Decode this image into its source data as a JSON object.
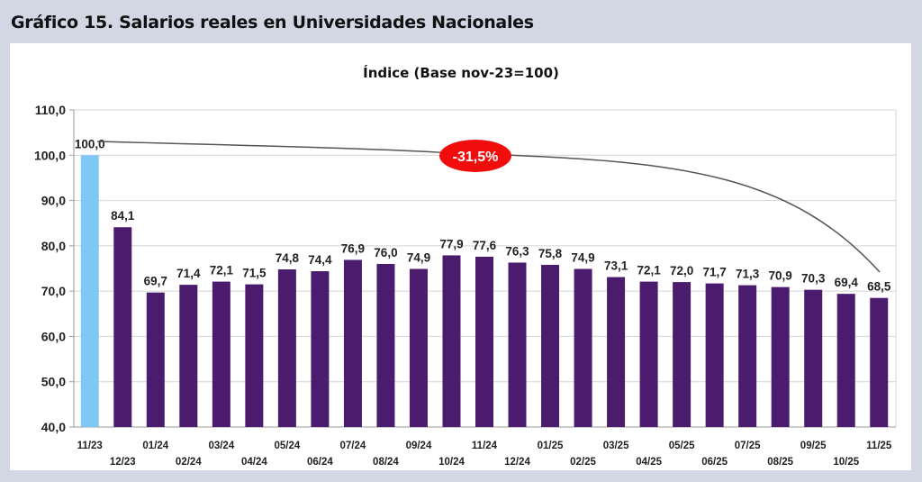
{
  "header": {
    "title": "Gráfico 15. Salarios reales en Universidades Nacionales"
  },
  "chart_data": {
    "type": "bar",
    "title": "Índice (Base nov-23=100)",
    "xlabel": "",
    "ylabel": "",
    "ylim": [
      40,
      110
    ],
    "yticks": [
      "40,0",
      "50,0",
      "60,0",
      "70,0",
      "80,0",
      "90,0",
      "100,0",
      "110,0"
    ],
    "grid": true,
    "categories": [
      "11/23",
      "12/23",
      "01/24",
      "02/24",
      "03/24",
      "04/24",
      "05/24",
      "06/24",
      "07/24",
      "08/24",
      "09/24",
      "10/24",
      "11/24",
      "12/24",
      "01/25",
      "02/25",
      "03/25",
      "04/25",
      "05/25",
      "06/25",
      "07/25",
      "08/25",
      "09/25",
      "10/25",
      "11/25"
    ],
    "values": [
      100.0,
      84.1,
      69.7,
      71.4,
      72.1,
      71.5,
      74.8,
      74.4,
      76.9,
      76.0,
      74.9,
      77.9,
      77.6,
      76.3,
      75.8,
      74.9,
      73.1,
      72.1,
      72.0,
      71.7,
      71.3,
      70.9,
      70.3,
      69.4,
      68.5
    ],
    "data_labels": [
      "100,0",
      "84,1",
      "69,7",
      "71,4",
      "72,1",
      "71,5",
      "74,8",
      "74,4",
      "76,9",
      "76,0",
      "74,9",
      "77,9",
      "77,6",
      "76,3",
      "75,8",
      "74,9",
      "73,1",
      "72,1",
      "72,0",
      "71,7",
      "71,3",
      "70,9",
      "70,3",
      "69,4",
      "68,5"
    ],
    "colors": {
      "base": "#7dc8f5",
      "bars": "#4b1c6e",
      "annotation": "#f20d0d"
    },
    "annotation": {
      "text": "-31,5%"
    }
  }
}
